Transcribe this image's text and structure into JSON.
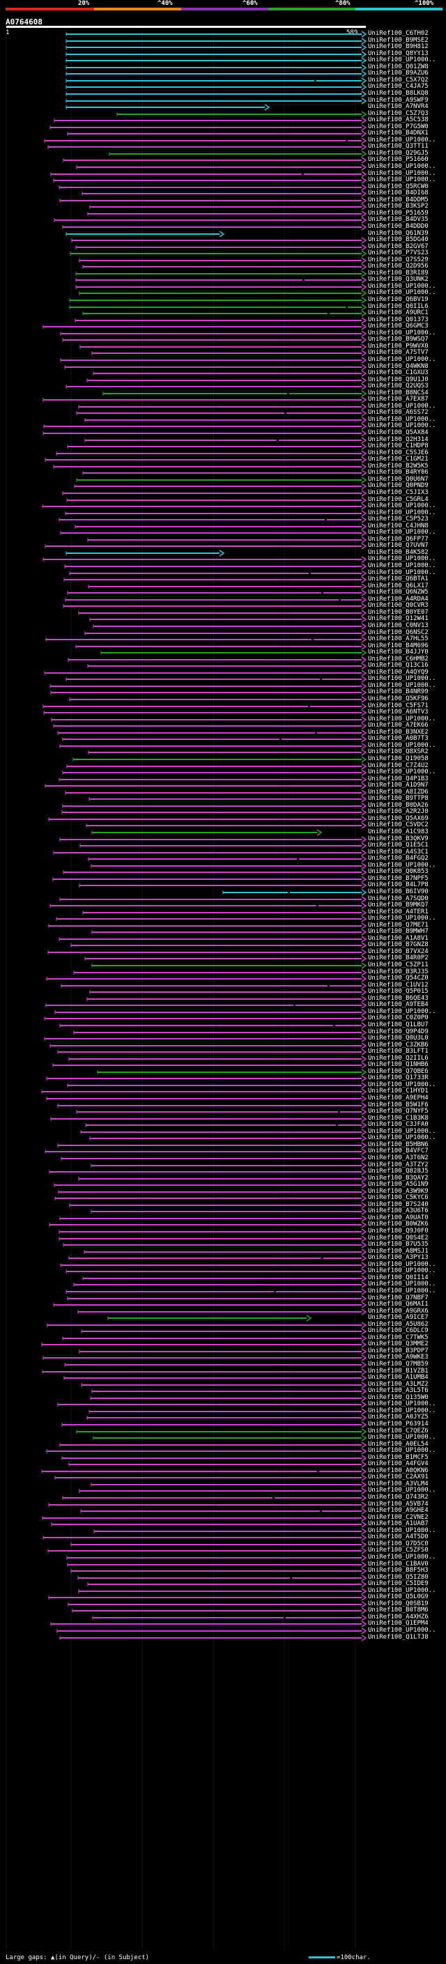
{
  "colors": {
    "background": "#000000",
    "grid": "#141433",
    "band_0_20": "#d9231b",
    "band_20_40": "#e8891a",
    "band_40_60": "#8e2bb2",
    "band_60_80": "#25a726",
    "band_80_100": "#2ac7d7",
    "identity_high": "#2ac7d7",
    "identity_mid": "#25a726",
    "identity_low": "#cc44cc",
    "gap": "#000000",
    "arrow": "#cc44cc"
  },
  "legend": {
    "markers": [
      "20%",
      "^40%",
      "^60%",
      "^80%",
      "^100%"
    ]
  },
  "query": {
    "id": "A0764608",
    "ruler_start": "1",
    "ruler_end": "589"
  },
  "hits": [
    "UniRef100_C6TH02",
    "UniRef100_B9MSE2",
    "UniRef100_B9H812",
    "UniRef100_Q8YY13",
    "UniRef100_UP1000..",
    "UniRef100_Q01ZW8",
    "UniRef100_B9AZU6",
    "UniRef100_C5X7Q2",
    "UniRef100_C4JA75",
    "UniRef100_B8LKQ8",
    "UniRef100_A9SWF9",
    "UniRef100_A7NVR4",
    "UniRef100_C5Z7Q3",
    "UniRef100_A5C538",
    "UniRef100_P7G5W0",
    "UniRef100_B4DNX1",
    "UniRef100_UP1000..",
    "UniRef100_Q3TT11",
    "UniRef100_Q29GJ5",
    "UniRef100_P51660",
    "UniRef100_UP1000..",
    "UniRef100_UP1000..",
    "UniRef100_UP1000..",
    "UniRef100_Q5RCW0",
    "UniRef100_B4DI68",
    "UniRef100_B4DDM5",
    "UniRef100_B3KSP2",
    "UniRef100_P51659",
    "UniRef100_B4DV35",
    "UniRef100_B4DDD0",
    "UniRef100_Q61N39",
    "UniRef100_B5DG40",
    "UniRef100_B2GV67",
    "UniRef100_P7VS23",
    "UniRef100_Q7S529",
    "UniRef100_Q2D956",
    "UniRef100_B3RI89",
    "UniRef100_Q3UNK2",
    "UniRef100_UP1000..",
    "UniRef100_UP1000..",
    "UniRef100_Q6BV19",
    "UniRef100_Q0IIL6",
    "UniRef100_A9URC1",
    "UniRef100_Q01373",
    "UniRef100_Q6GMC3",
    "UniRef100_UP1000..",
    "UniRef100_B9WSQ7",
    "UniRef100_P9WVX0",
    "UniRef100_A7STV7",
    "UniRef100_UP1000..",
    "UniRef100_Q4WKN8",
    "UniRef100_C1GXU3",
    "UniRef100_Q9U1J0",
    "UniRef100_Q2UQS3",
    "UniRef100_B8NCS4",
    "UniRef100_A7EX87",
    "UniRef100_UP1000..",
    "UniRef100_A6SS72",
    "UniRef100_UP1000..",
    "UniRef100_UP1000..",
    "UniRef100_Q5AX84",
    "UniRef100_Q2H314",
    "UniRef100_C1HDP8",
    "UniRef100_C5SJE6",
    "UniRef100_C1GM21",
    "UniRef100_B2W5K5",
    "UniRef100_B4RY06",
    "UniRef100_Q0U6N7",
    "UniRef100_Q0PND9",
    "UniRef100_C5JIX3",
    "UniRef100_C5GRL4",
    "UniRef100_UP1000..",
    "UniRef100_UP1000..",
    "UniRef100_C5P523",
    "UniRef100_C4JHN8",
    "UniRef100_UP1000..",
    "UniRef100_Q6FP77",
    "UniRef100_Q7UVN7",
    "UniRef100_B4K582",
    "UniRef100_UP1000..",
    "UniRef100_UP1000..",
    "UniRef100_UP1000..",
    "UniRef100_Q6BTA1",
    "UniRef100_Q6LX17",
    "UniRef100_Q6NZW5",
    "UniRef100_A4RDA4",
    "UniRef100_Q0CVR3",
    "UniRef100_B0YE07",
    "UniRef100_Q12W41",
    "UniRef100_C0NV13",
    "UniRef100_Q6NSC2",
    "UniRef100_A7HL55",
    "UniRef100_B4M696",
    "UniRef100_B4JJY0",
    "UniRef100_C6HMB2",
    "UniRef100_Q13C16",
    "UniRef100_A4QYQ9",
    "UniRef100_UP1000..",
    "UniRef100_UP1000..",
    "UniRef100_B4NR99",
    "UniRef100_Q5KF96",
    "UniRef100_C5FS71",
    "UniRef100_A6NTV3",
    "UniRef100_UP1000..",
    "UniRef100_A7EK66",
    "UniRef100_B3NXE2",
    "UniRef100_A0B7T3",
    "UniRef100_UP1000..",
    "UniRef100_Q8XSR2",
    "UniRef100_Q19058",
    "UniRef100_C7Z4U2",
    "UniRef100_UP1000..",
    "UniRef100_Q4P1B3",
    "UniRef100_A1D9N7",
    "UniRef100_A8IZD6",
    "UniRef100_B9TTP8",
    "UniRef100_B0DA26",
    "UniRef100_A2R2J0",
    "UniRef100_Q5AX69",
    "UniRef100_C5VDC2",
    "UniRef100_A1C983",
    "UniRef100_B3QKV9",
    "UniRef100_Q1E5C1",
    "UniRef100_A4S3C1",
    "UniRef100_B4FGQ2",
    "UniRef100_UP1000..",
    "UniRef100_Q0K853",
    "UniRef100_B7NPF5",
    "UniRef100_B4L7P8",
    "UniRef100_B6IV90",
    "UniRef100_A7SQD0",
    "UniRef100_B9MKQ7",
    "UniRef100_A4TER1",
    "UniRef100_UP1000..",
    "UniRef100_Q7ME71",
    "UniRef100_B9MWH7",
    "UniRef100_A1A8V1",
    "UniRef100_B7GNZ8",
    "UniRef100_B7VX24",
    "UniRef100_B4R0P2",
    "UniRef100_C5ZP11",
    "UniRef100_B3RJ35",
    "UniRef100_Q54CZ0",
    "UniRef100_C1UV12",
    "UniRef100_Q5P015",
    "UniRef100_B6QE43",
    "UniRef100_A9TEB4",
    "UniRef100_UP1000..",
    "UniRef100_C0Z0P0",
    "UniRef100_Q1LBU7",
    "UniRef100_Q9P4D9",
    "UniRef100_Q0U3L0",
    "UniRef100_C3ZKB6",
    "UniRef100_B3LFT1",
    "UniRef100_Q2IIL6",
    "UniRef100_Q1NHB6",
    "UniRef100_Q7QBE6",
    "UniRef100_Q1733R",
    "UniRef100_UP1000..",
    "UniRef100_C1HYD1",
    "UniRef100_A9EPH4",
    "UniRef100_B5W1F6",
    "UniRef100_Q7NYF5",
    "UniRef100_C1B3K8",
    "UniRef100_C3JFA0",
    "UniRef100_UP1000..",
    "UniRef100_UP1000..",
    "UniRef100_B5HBN6",
    "UniRef100_B4VFC7",
    "UniRef100_A3T6N2",
    "UniRef100_A3TZY2",
    "UniRef100_Q828J5",
    "UniRef100_B3QAY2",
    "UniRef100_A5G1N9",
    "UniRef100_A3W9K9",
    "UniRef100_C5KYC6",
    "UniRef100_B7S240",
    "UniRef100_A3U6T6",
    "UniRef100_A9UAT0",
    "UniRef100_B0WZK6",
    "UniRef100_Q9J0F0",
    "UniRef100_Q0S4E2",
    "UniRef100_B7U535",
    "UniRef100_A8MSJ1",
    "UniRef100_A3PY13",
    "UniRef100_UP1000..",
    "UniRef100_UP1000..",
    "UniRef100_Q0II14",
    "UniRef100_UP1000..",
    "UniRef100_UP1000..",
    "UniRef100_Q7NBF7",
    "UniRef100_Q6MAI1",
    "UniRef100_A9GRX6",
    "UniRef100_A9ICE7",
    "UniRef100_A5U862",
    "UniRef100_C6DLC9",
    "UniRef100_C7TWK5",
    "UniRef100_Q3MME2",
    "UniRef100_B3PDP7",
    "UniRef100_A9WKE3",
    "UniRef100_Q7MB59",
    "UniRef100_B1VZB1",
    "UniRef100_A1UMB4",
    "UniRef100_A3LMZ2",
    "UniRef100_A3L5T6",
    "UniRef100_Q135W0",
    "UniRef100_UP1000..",
    "UniRef100_UP1000..",
    "UniRef100_A0JYZ5",
    "UniRef100_P63914",
    "UniRef100_C7QEZ6",
    "UniRef100_UP1000..",
    "UniRef100_A0EL54",
    "UniRef100_UP1000..",
    "UniRef100_B1MCF5",
    "UniRef100_A4FGV4",
    "UniRef100_A0QKN6",
    "UniRef100_C2AX91",
    "UniRef100_A3VLM4",
    "UniRef100_UP1000..",
    "UniRef100_Q743R2",
    "UniRef100_A5VB74",
    "UniRef100_A9GHE4",
    "UniRef100_C2VNE2",
    "UniRef100_A1UAB7",
    "UniRef100_UP1000..",
    "UniRef100_A4T5D0",
    "UniRef100_Q7D5C0",
    "UniRef100_C5ZFS0",
    "UniRef100_UP1000..",
    "UniRef100_C1BAV0",
    "UniRef100_B8F5H3",
    "UniRef100_Q5IZ80",
    "UniRef100_C5IDE9",
    "UniRef100_UP1000..",
    "UniRef100_Q5L0G9",
    "UniRef100_Q0SB19",
    "UniRef100_B0T8M6",
    "UniRef100_A4XHZ6",
    "UniRef100_Q1EPM4",
    "UniRef100_UP1000..",
    "UniRef100_Q1LTJ8"
  ],
  "footer": {
    "text": "Large gaps: ▲(in Query)/- (in Subject)",
    "scale_text": "=100char."
  }
}
